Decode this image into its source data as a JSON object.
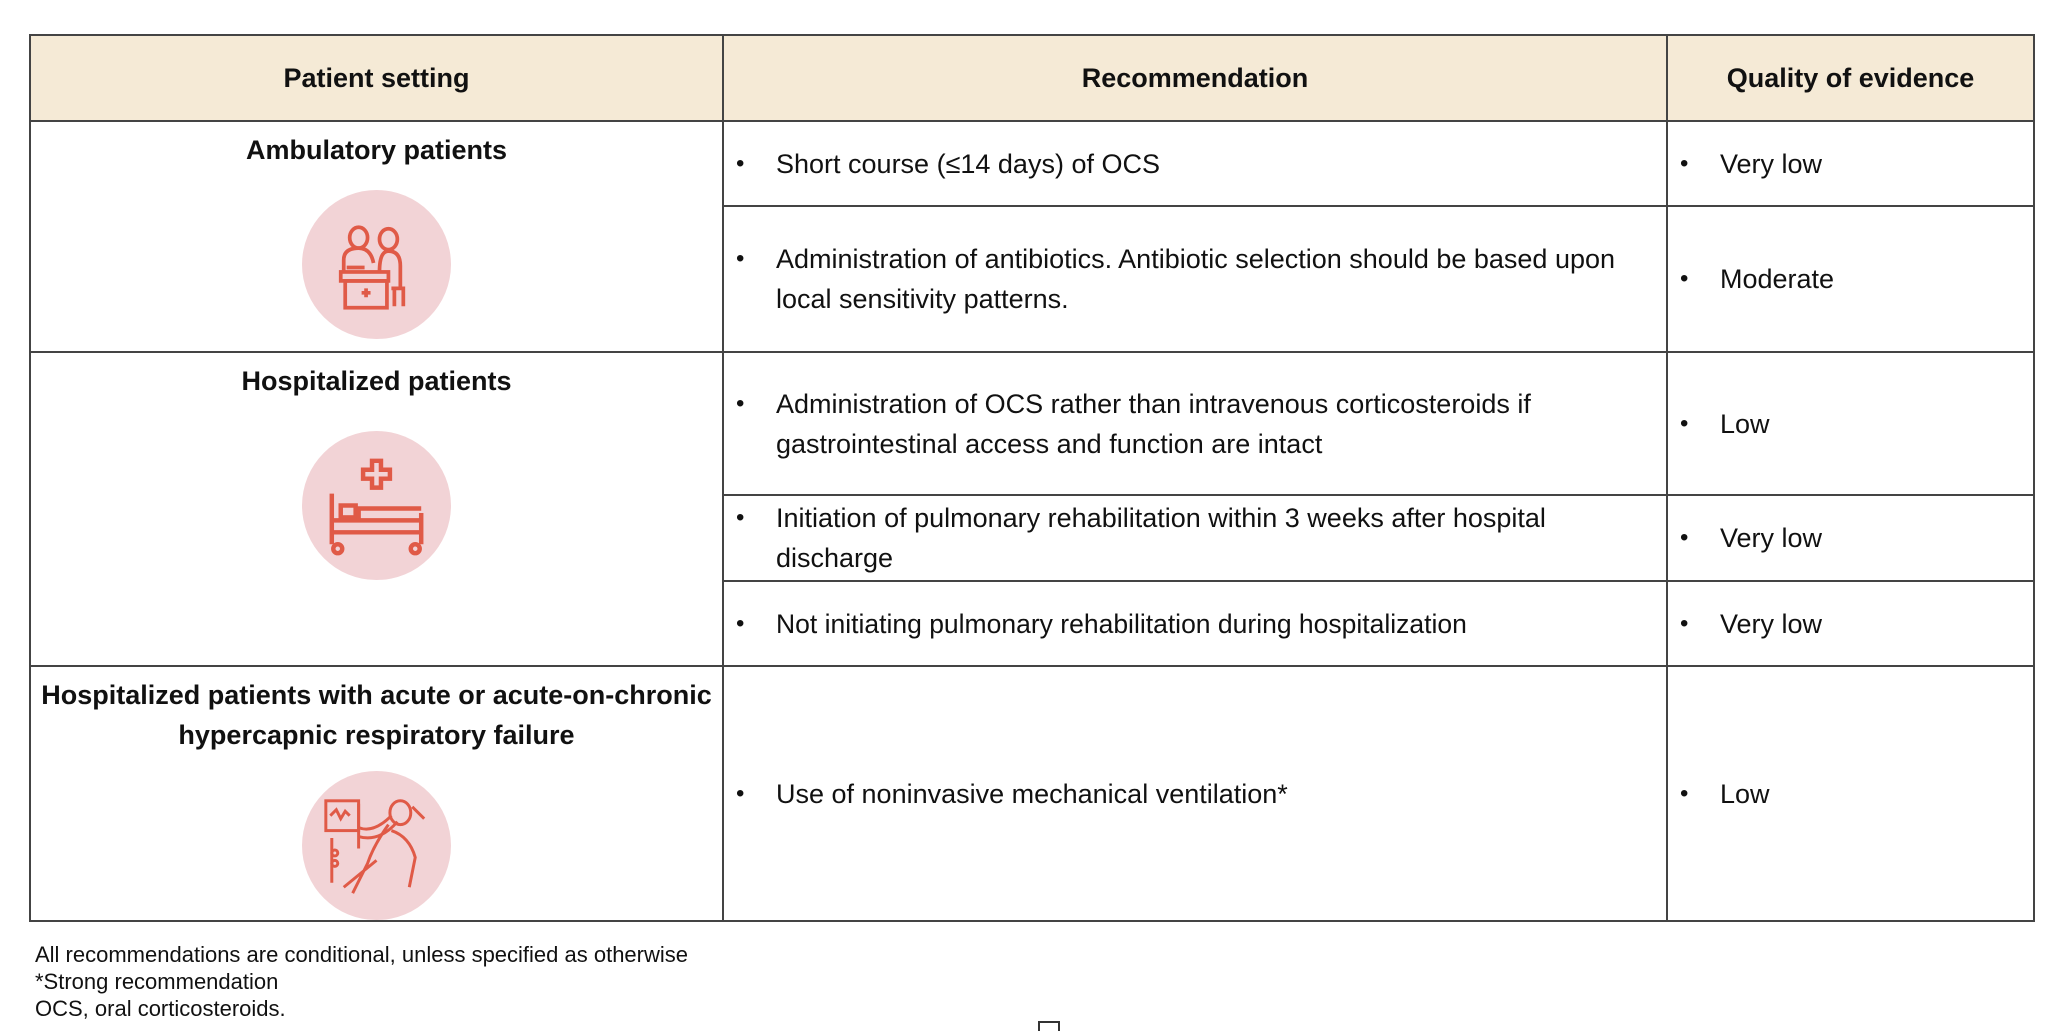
{
  "header": {
    "col1": "Patient setting",
    "col2": "Recommendation",
    "col3": "Quality of evidence"
  },
  "groups": [
    {
      "setting": "Ambulatory patients",
      "icon": "doctor-consultation-icon",
      "rows": [
        {
          "recommendation": "Short course (≤14 days) of OCS",
          "quality": "Very low"
        },
        {
          "recommendation": "Administration of antibiotics. Antibiotic selection should be based upon local sensitivity patterns.",
          "quality": "Moderate"
        }
      ]
    },
    {
      "setting": "Hospitalized patients",
      "icon": "hospital-bed-icon",
      "rows": [
        {
          "recommendation": "Administration of OCS rather than intravenous corticosteroids if gastrointestinal access and function are intact",
          "quality": "Low"
        },
        {
          "recommendation": "Initiation of pulmonary rehabilitation within 3 weeks after hospital discharge",
          "quality": "Very low"
        },
        {
          "recommendation": "Not initiating pulmonary rehabilitation during hospitalization",
          "quality": "Very low"
        }
      ]
    },
    {
      "setting": "Hospitalized patients with acute or acute-on-chronic hypercapnic respiratory failure",
      "icon": "ventilator-patient-icon",
      "rows": [
        {
          "recommendation": "Use of noninvasive mechanical ventilation*",
          "quality": "Low"
        }
      ]
    }
  ],
  "footnotes": [
    "All recommendations are conditional, unless specified as otherwise",
    "*Strong recommendation",
    "OCS, oral corticosteroids."
  ],
  "bullet": "•",
  "colors": {
    "header_bg": "#f5ead6",
    "icon_bg": "#f2d3d6",
    "icon_stroke": "#e05a47",
    "border": "#444444"
  }
}
